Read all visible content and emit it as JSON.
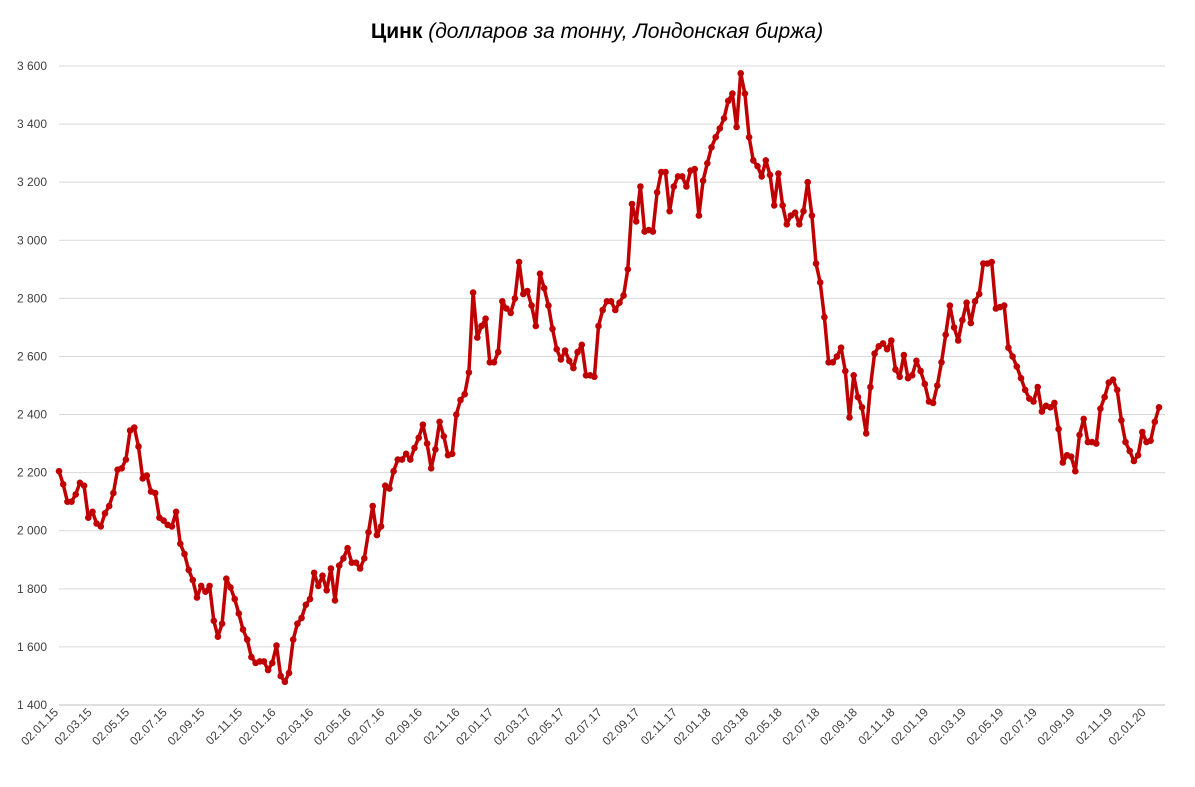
{
  "chart_data": {
    "type": "line",
    "title": "Цинк",
    "subtitle": "(долларов за тонну, Лондонская биржа)",
    "xlabel": "",
    "ylabel": "",
    "ylim": [
      1400,
      3600
    ],
    "y_ticks": [
      {
        "value": 1400,
        "label": "1 400"
      },
      {
        "value": 1600,
        "label": "1 600"
      },
      {
        "value": 1800,
        "label": "1 800"
      },
      {
        "value": 2000,
        "label": "2 000"
      },
      {
        "value": 2200,
        "label": "2 200"
      },
      {
        "value": 2400,
        "label": "2 400"
      },
      {
        "value": 2600,
        "label": "2 600"
      },
      {
        "value": 2800,
        "label": "2 800"
      },
      {
        "value": 3000,
        "label": "3 000"
      },
      {
        "value": 3200,
        "label": "3 200"
      },
      {
        "value": 3400,
        "label": "3 400"
      },
      {
        "value": 3600,
        "label": "3 600"
      }
    ],
    "x_ticks": [
      {
        "index": 0,
        "label": "02.01.15"
      },
      {
        "index": 8,
        "label": "02.03.15"
      },
      {
        "index": 17,
        "label": "02.05.15"
      },
      {
        "index": 26,
        "label": "02.07.15"
      },
      {
        "index": 35,
        "label": "02.09.15"
      },
      {
        "index": 44,
        "label": "02.11.15"
      },
      {
        "index": 52,
        "label": "02.01.16"
      },
      {
        "index": 61,
        "label": "02.03.16"
      },
      {
        "index": 70,
        "label": "02.05.16"
      },
      {
        "index": 78,
        "label": "02.07.16"
      },
      {
        "index": 87,
        "label": "02.09.16"
      },
      {
        "index": 96,
        "label": "02.11.16"
      },
      {
        "index": 104,
        "label": "02.01.17"
      },
      {
        "index": 113,
        "label": "02.03.17"
      },
      {
        "index": 121,
        "label": "02.05.17"
      },
      {
        "index": 130,
        "label": "02.07.17"
      },
      {
        "index": 139,
        "label": "02.09.17"
      },
      {
        "index": 148,
        "label": "02.11.17"
      },
      {
        "index": 156,
        "label": "02.01.18"
      },
      {
        "index": 165,
        "label": "02.03.18"
      },
      {
        "index": 173,
        "label": "02.05.18"
      },
      {
        "index": 182,
        "label": "02.07.18"
      },
      {
        "index": 191,
        "label": "02.09.18"
      },
      {
        "index": 200,
        "label": "02.11.18"
      },
      {
        "index": 208,
        "label": "02.01.19"
      },
      {
        "index": 217,
        "label": "02.03.19"
      },
      {
        "index": 226,
        "label": "02.05.19"
      },
      {
        "index": 234,
        "label": "02.07.19"
      },
      {
        "index": 243,
        "label": "02.09.19"
      },
      {
        "index": 252,
        "label": "02.11.19"
      },
      {
        "index": 260,
        "label": "02.01.20"
      }
    ],
    "grid": true,
    "legend": "none",
    "colors": {
      "line": "#c00000",
      "marker": "#c00000",
      "grid": "#d9d9d9",
      "axis": "#bfbfbf"
    },
    "series": [
      {
        "values": [
          2205,
          2160,
          2100,
          2100,
          2125,
          2165,
          2155,
          2045,
          2065,
          2025,
          2015,
          2060,
          2085,
          2130,
          2210,
          2215,
          2245,
          2345,
          2355,
          2290,
          2180,
          2190,
          2135,
          2130,
          2045,
          2035,
          2020,
          2015,
          2065,
          1955,
          1920,
          1865,
          1830,
          1770,
          1810,
          1790,
          1810,
          1690,
          1635,
          1680,
          1835,
          1805,
          1765,
          1715,
          1660,
          1625,
          1565,
          1545,
          1550,
          1550,
          1520,
          1545,
          1605,
          1500,
          1480,
          1510,
          1625,
          1680,
          1700,
          1745,
          1765,
          1855,
          1810,
          1845,
          1795,
          1870,
          1760,
          1880,
          1905,
          1940,
          1890,
          1890,
          1870,
          1905,
          1995,
          2085,
          1985,
          2015,
          2155,
          2145,
          2205,
          2245,
          2245,
          2265,
          2245,
          2285,
          2320,
          2365,
          2300,
          2215,
          2280,
          2375,
          2325,
          2260,
          2265,
          2400,
          2450,
          2470,
          2545,
          2820,
          2665,
          2705,
          2730,
          2580,
          2580,
          2615,
          2790,
          2765,
          2750,
          2800,
          2925,
          2815,
          2825,
          2775,
          2705,
          2885,
          2835,
          2775,
          2695,
          2625,
          2590,
          2620,
          2585,
          2560,
          2615,
          2640,
          2535,
          2535,
          2530,
          2705,
          2760,
          2790,
          2790,
          2760,
          2785,
          2810,
          2900,
          3125,
          3065,
          3185,
          3030,
          3035,
          3030,
          3165,
          3235,
          3235,
          3100,
          3185,
          3220,
          3220,
          3185,
          3240,
          3245,
          3085,
          3205,
          3265,
          3320,
          3355,
          3385,
          3420,
          3480,
          3505,
          3390,
          3575,
          3505,
          3355,
          3275,
          3255,
          3220,
          3275,
          3225,
          3120,
          3230,
          3120,
          3055,
          3085,
          3095,
          3055,
          3100,
          3200,
          3085,
          2920,
          2855,
          2735,
          2580,
          2580,
          2600,
          2630,
          2550,
          2390,
          2535,
          2460,
          2425,
          2335,
          2495,
          2610,
          2635,
          2645,
          2625,
          2655,
          2555,
          2530,
          2605,
          2525,
          2535,
          2585,
          2550,
          2505,
          2445,
          2440,
          2500,
          2580,
          2675,
          2775,
          2700,
          2655,
          2725,
          2785,
          2715,
          2790,
          2815,
          2920,
          2920,
          2925,
          2765,
          2770,
          2775,
          2630,
          2600,
          2565,
          2525,
          2485,
          2455,
          2445,
          2495,
          2410,
          2430,
          2425,
          2440,
          2350,
          2235,
          2260,
          2255,
          2205,
          2330,
          2385,
          2305,
          2305,
          2300,
          2420,
          2460,
          2510,
          2520,
          2485,
          2380,
          2305,
          2275,
          2240,
          2260,
          2340,
          2305,
          2310,
          2375,
          2425
        ]
      }
    ]
  }
}
